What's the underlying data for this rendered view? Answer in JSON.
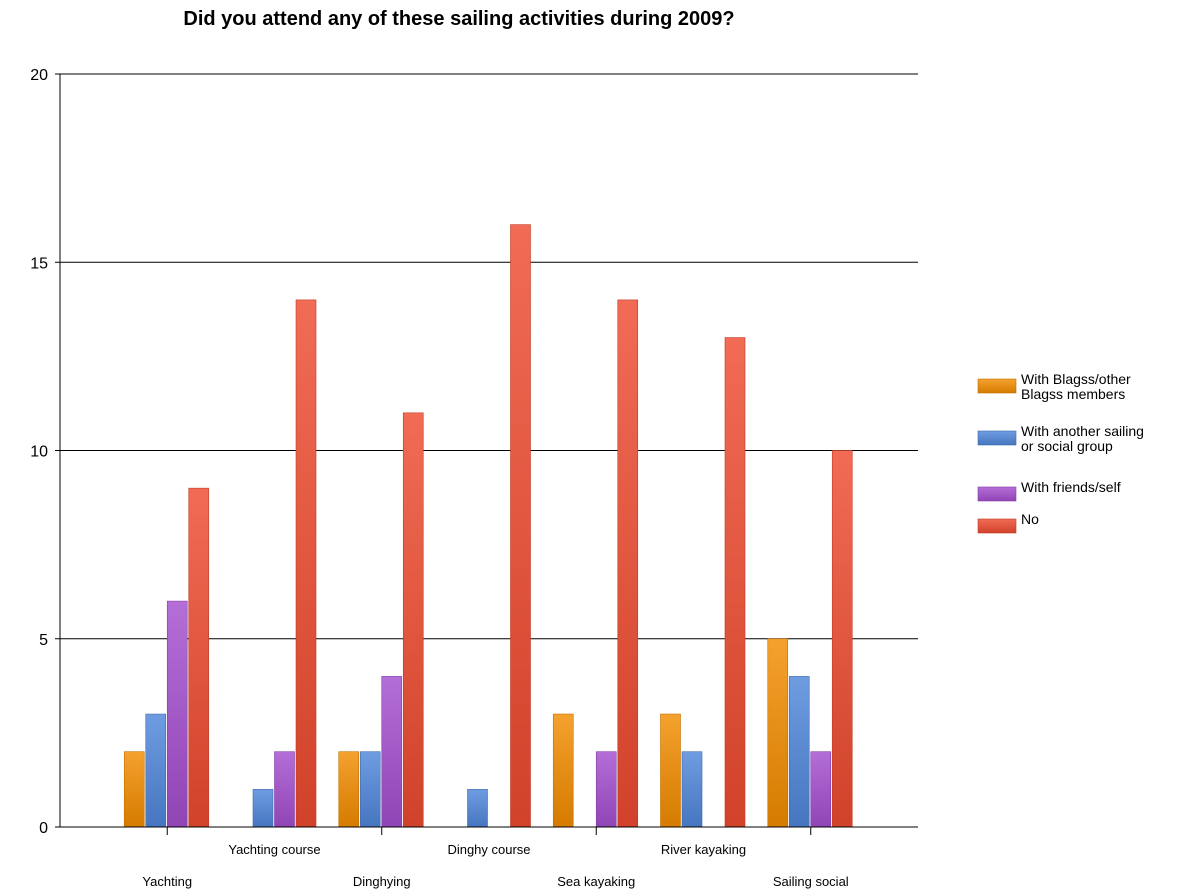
{
  "chart_data": {
    "type": "bar",
    "title": "Did you attend any of these sailing activities during 2009?",
    "xlabel": "",
    "ylabel": "",
    "ylim": [
      0,
      20
    ],
    "yticks": [
      0,
      5,
      10,
      15,
      20
    ],
    "grid": true,
    "legend_position": "right",
    "categories": [
      "Yachting",
      "Yachting course",
      "Dinghying",
      "Dinghy course",
      "Sea kayaking",
      "River kayaking",
      "Sailing social"
    ],
    "series": [
      {
        "name": "With Blagss/other Blagss members",
        "legend_lines": [
          "With Blagss/other",
          "Blagss members"
        ],
        "color": "#F28C00",
        "values": [
          2,
          0,
          2,
          0,
          3,
          3,
          5
        ]
      },
      {
        "name": "With another sailing or social group",
        "legend_lines": [
          "With another sailing",
          "or social group"
        ],
        "color": "#4F86DA",
        "values": [
          3,
          1,
          2,
          1,
          0,
          2,
          4
        ]
      },
      {
        "name": "With friends/self",
        "legend_lines": [
          "With friends/self"
        ],
        "color": "#A44ECE",
        "values": [
          6,
          2,
          4,
          0,
          2,
          0,
          2
        ]
      },
      {
        "name": "No",
        "legend_lines": [
          "No"
        ],
        "color": "#EE4B30",
        "values": [
          9,
          14,
          11,
          16,
          14,
          13,
          10
        ]
      }
    ]
  }
}
